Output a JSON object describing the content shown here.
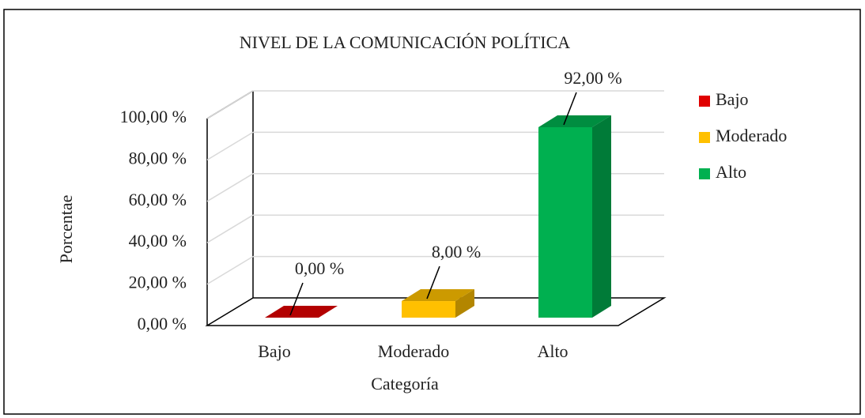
{
  "chart_data": {
    "type": "bar3d",
    "title": "NIVEL DE LA COMUNICACIÓN POLÍTICA",
    "y_label": "Porcentae",
    "x_label": "Categoría",
    "categories": [
      "Bajo",
      "Moderado",
      "Alto"
    ],
    "values": [
      0,
      8,
      92
    ],
    "value_labels": [
      "0,00  %",
      "8,00  %",
      "92,00  %"
    ],
    "colors": [
      "#e00000",
      "#ffc000",
      "#00b050"
    ],
    "ylim": [
      0,
      100
    ],
    "yticks": [
      {
        "value": 0,
        "label": "0,00  %"
      },
      {
        "value": 20,
        "label": "20,00  %"
      },
      {
        "value": 40,
        "label": "40,00  %"
      },
      {
        "value": 60,
        "label": "60,00  %"
      },
      {
        "value": 80,
        "label": "80,00  %"
      },
      {
        "value": 100,
        "label": "100,00  %"
      }
    ],
    "grid": true,
    "legend": "right"
  }
}
